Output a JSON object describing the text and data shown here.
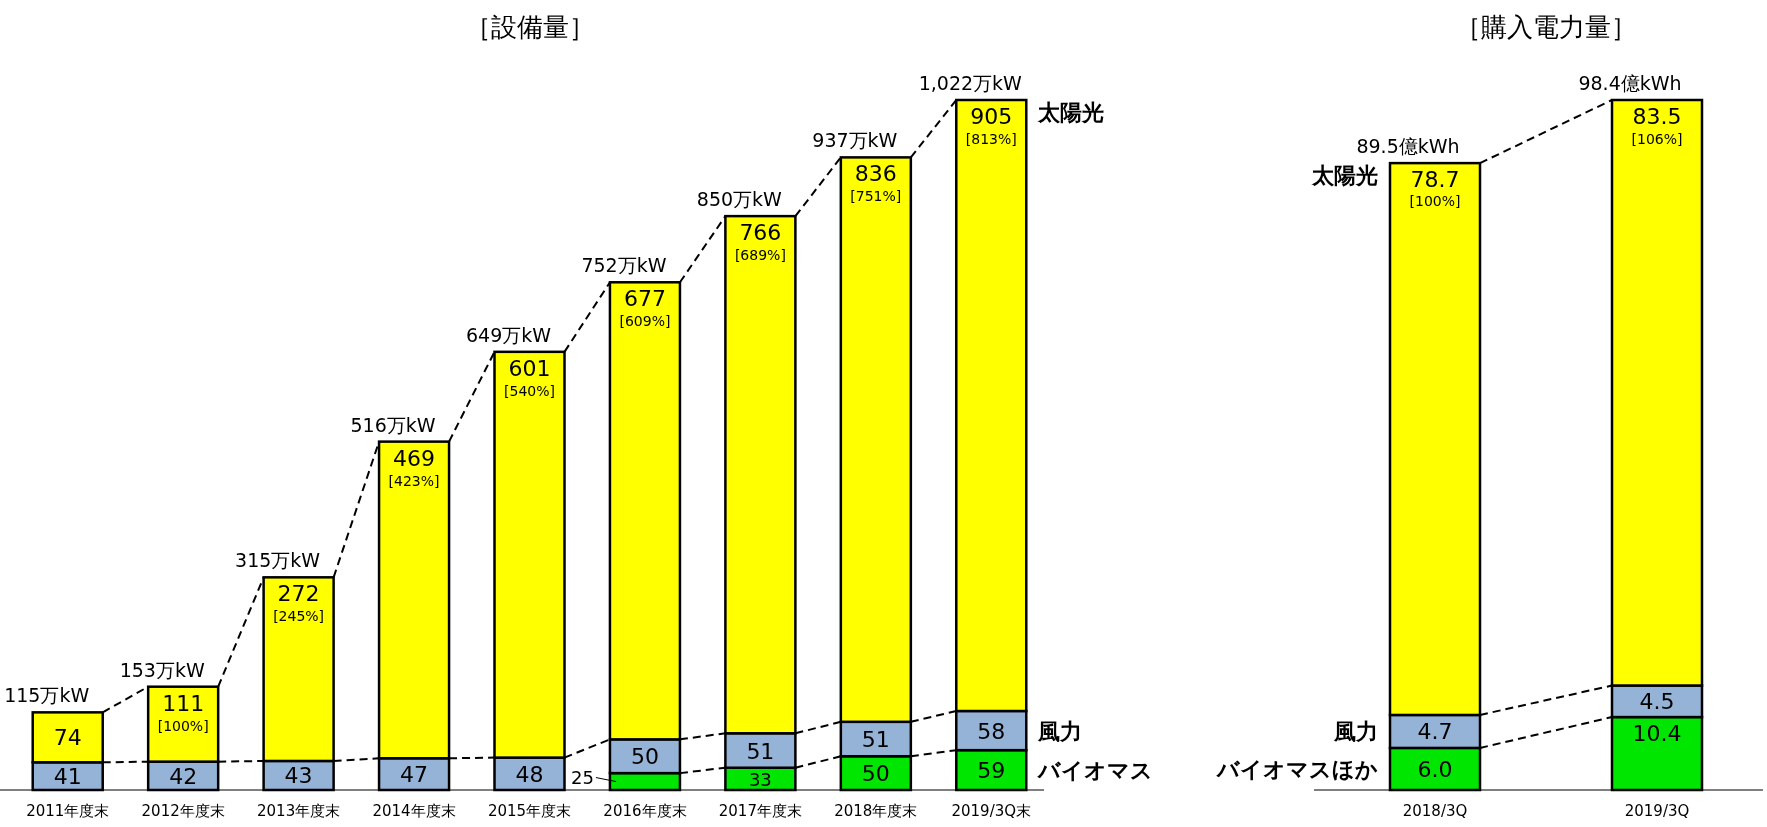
{
  "chart_data": [
    {
      "type": "bar",
      "title": "［設備量］",
      "stacked": true,
      "data_labels": true,
      "categories": [
        "2011年度末",
        "2012年度末",
        "2013年度末",
        "2014年度末",
        "2015年度末",
        "2016年度末",
        "2017年度末",
        "2018年度末",
        "2019/3Q末"
      ],
      "series": [
        {
          "name": "バイオマス",
          "color": "#00e600",
          "values": [
            null,
            null,
            null,
            null,
            null,
            25,
            33,
            50,
            59
          ]
        },
        {
          "name": "風力",
          "color": "#95b3d7",
          "values": [
            41,
            42,
            43,
            47,
            48,
            50,
            51,
            51,
            58
          ]
        },
        {
          "name": "太陽光",
          "color": "#ffff00",
          "values": [
            74,
            111,
            272,
            469,
            601,
            677,
            766,
            836,
            905
          ]
        }
      ],
      "totals": [
        "115万kW",
        "153万kW",
        "315万kW",
        "516万kW",
        "649万kW",
        "752万kW",
        "850万kW",
        "937万kW",
        "1,022万kW"
      ],
      "annotations": [
        {
          "text": "[100%]",
          "x": "2012年度末",
          "y": 153
        },
        {
          "text": "[245%]",
          "x": "2013年度末",
          "y": 315
        },
        {
          "text": "[423%]",
          "x": "2014年度末",
          "y": 516
        },
        {
          "text": "[540%]",
          "x": "2015年度末",
          "y": 649
        },
        {
          "text": "[609%]",
          "x": "2016年度末",
          "y": 752
        },
        {
          "text": "[689%]",
          "x": "2017年度末",
          "y": 850
        },
        {
          "text": "[751%]",
          "x": "2018年度末",
          "y": 937
        },
        {
          "text": "[813%]",
          "x": "2019/3Q末",
          "y": 1022
        }
      ]
    },
    {
      "type": "bar",
      "title": "［購入電力量］",
      "stacked": true,
      "data_labels": true,
      "categories": [
        "2018/3Q",
        "2019/3Q"
      ],
      "series": [
        {
          "name": "バイオマスほか",
          "color": "#00e600",
          "values": [
            6.0,
            10.4
          ],
          "value_labels": [
            "6.0",
            "10.4"
          ]
        },
        {
          "name": "風力",
          "color": "#95b3d7",
          "values": [
            4.7,
            4.5
          ]
        },
        {
          "name": "太陽光",
          "color": "#ffff00",
          "values": [
            78.7,
            83.5
          ]
        }
      ],
      "totals": [
        "89.5億kWh",
        "98.4億kWh"
      ],
      "annotations": [
        {
          "text": "[100%]",
          "x": "2018/3Q",
          "y": 89.5
        },
        {
          "text": "[106%]",
          "x": "2019/3Q",
          "y": 98.4
        }
      ]
    }
  ]
}
